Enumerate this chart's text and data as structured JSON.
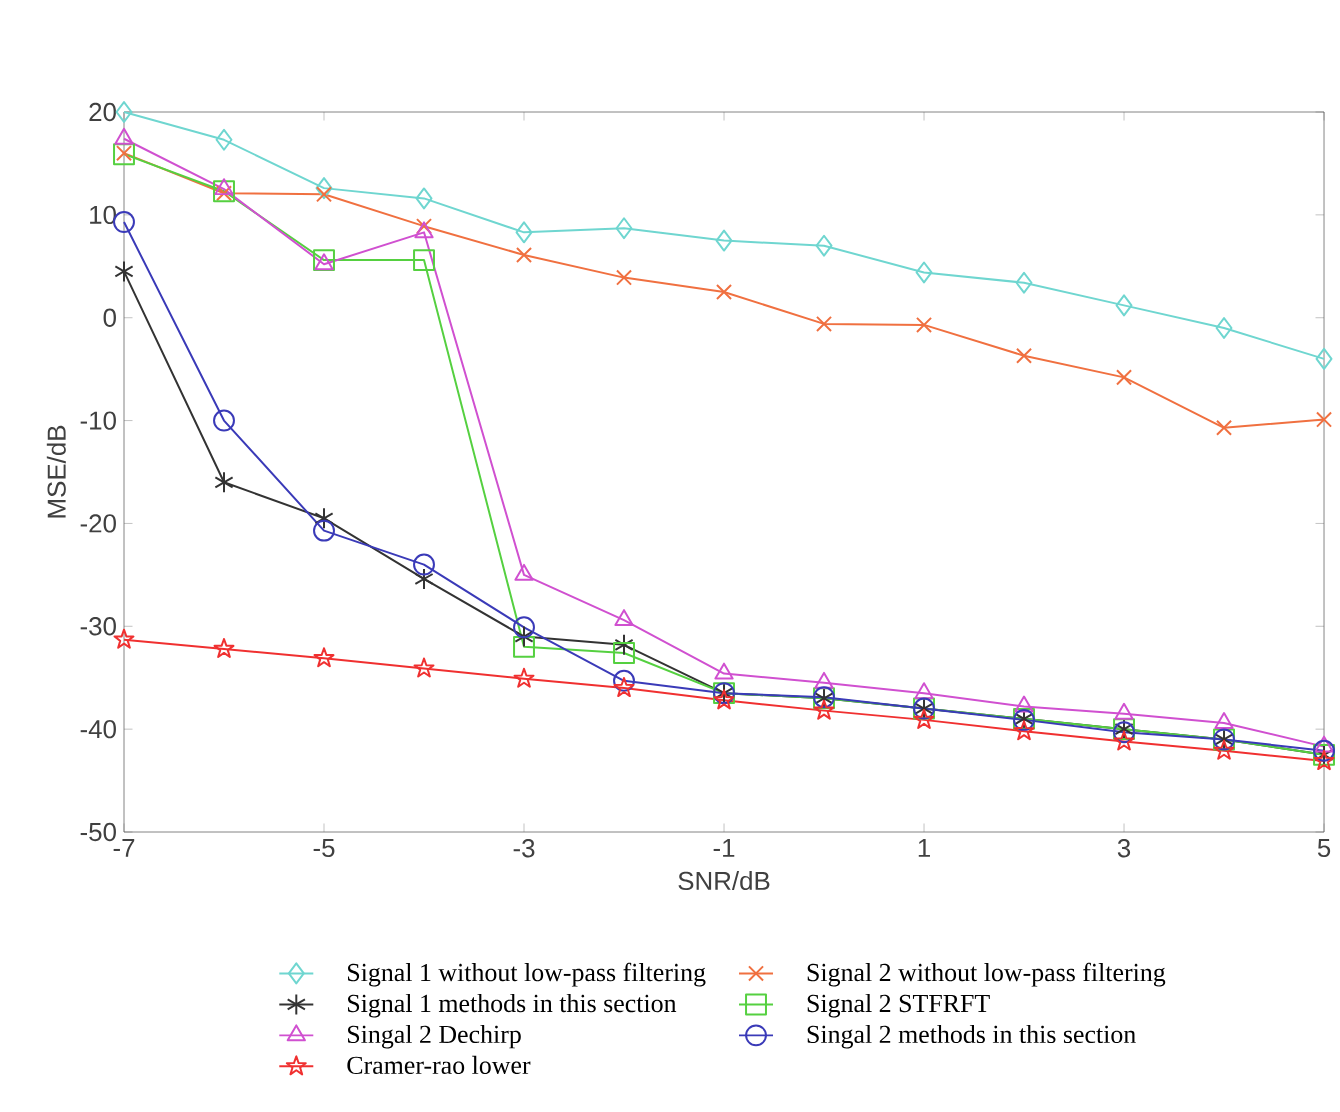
{
  "chart_data": {
    "type": "line",
    "xlabel": "SNR/dB",
    "ylabel": "MSE/dB",
    "x": [
      -7,
      -6,
      -5,
      -4,
      -3,
      -2,
      -1,
      0,
      1,
      2,
      3,
      4,
      5
    ],
    "xlim": [
      -7,
      5
    ],
    "xticks": [
      -7,
      -5,
      -3,
      -1,
      1,
      3,
      5
    ],
    "ylim": [
      -50,
      20
    ],
    "yticks": [
      -50,
      -40,
      -30,
      -20,
      -10,
      0,
      10,
      20
    ],
    "grid": false,
    "legend": "bottom",
    "series": [
      {
        "name": "Signal 1 without low-pass filtering",
        "color": "#6fd6d0",
        "marker": "diamond",
        "values": [
          20,
          17.3,
          12.6,
          11.6,
          8.3,
          8.7,
          7.5,
          7,
          4.4,
          3.4,
          1.2,
          -1,
          -4
        ]
      },
      {
        "name": "Signal 2 without low-pass filtering",
        "color": "#f07040",
        "marker": "cross",
        "values": [
          16,
          12.1,
          12,
          8.9,
          6.1,
          3.9,
          2.5,
          -0.6,
          -0.7,
          -3.7,
          -5.8,
          -10.7,
          -9.9
        ]
      },
      {
        "name": "Signal 1 methods in this section",
        "color": "#333333",
        "marker": "cross",
        "values": [
          4.5,
          -16,
          -19.5,
          -25.4,
          -31,
          -31.8,
          -36.5,
          -37,
          -38,
          -39,
          -40,
          -41,
          -42.5
        ]
      },
      {
        "name": "Signal 2 STFRFT",
        "color": "#55d040",
        "marker": "square",
        "values": [
          15.9,
          12.3,
          5.6,
          5.6,
          -32,
          -32.6,
          -36.5,
          -37,
          -38,
          -39,
          -40,
          -41,
          -42.5
        ]
      },
      {
        "name": "Singal 2 Dechirp",
        "color": "#d050d0",
        "marker": "triangle",
        "values": [
          17.4,
          12.5,
          5.2,
          8.3,
          -25,
          -29.4,
          -34.6,
          -35.5,
          -36.5,
          -37.8,
          -38.5,
          -39.4,
          -41.7
        ]
      },
      {
        "name": "Singal 2 methods in this section",
        "color": "#3a3ab8",
        "marker": "circle",
        "values": [
          9.3,
          -10,
          -20.7,
          -24,
          -30.1,
          -35.3,
          -36.5,
          -36.9,
          -38,
          -39.1,
          -40.3,
          -41,
          -42.1
        ]
      },
      {
        "name": "Cramer-rao lower",
        "color": "#f03030",
        "marker": "star",
        "values": [
          -31.3,
          -32.2,
          -33.1,
          -34.1,
          -35.1,
          -36,
          -37.2,
          -38.2,
          -39.1,
          -40.2,
          -41.2,
          -42.1,
          -43.1
        ]
      }
    ]
  }
}
